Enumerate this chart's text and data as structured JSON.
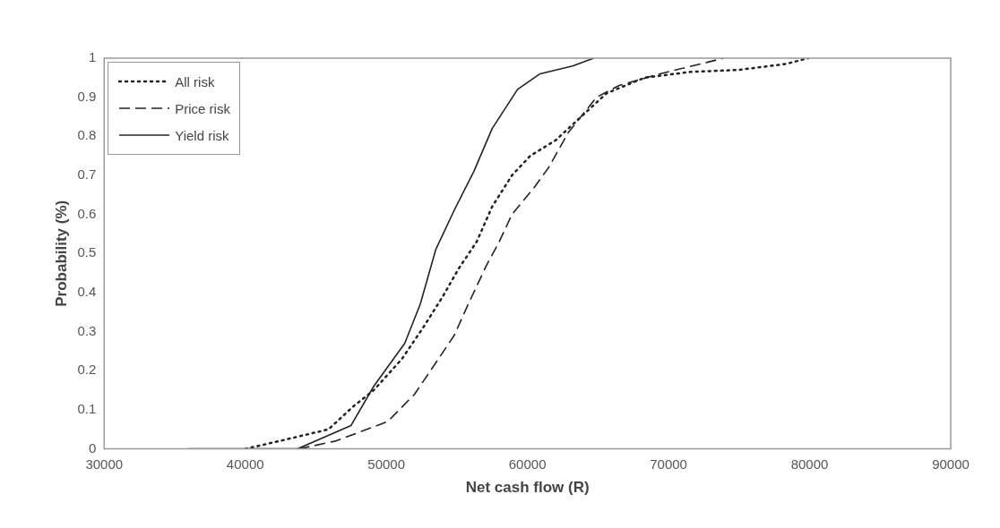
{
  "chart_data": {
    "type": "line",
    "xlabel": "Net cash flow (R)",
    "ylabel": "Probability (%)",
    "xlim": [
      30000,
      90000
    ],
    "xticks": [
      30000,
      40000,
      50000,
      60000,
      70000,
      80000,
      90000
    ],
    "ylim": [
      0,
      1
    ],
    "yticks": [
      0,
      0.1,
      0.2,
      0.3,
      0.4,
      0.5,
      0.6,
      0.7,
      0.8,
      0.9,
      1
    ],
    "grid": false,
    "legend": "top left",
    "marker": "none",
    "series": [
      {
        "name": "All risk",
        "color": "#222222",
        "line_style": "dotted",
        "x": [
          40000,
          42400,
          45900,
          47700,
          49100,
          51100,
          52600,
          54000,
          55100,
          56400,
          57500,
          58900,
          60200,
          62000,
          63800,
          65600,
          68300,
          71600,
          75000,
          78300,
          79900
        ],
        "values": [
          0,
          0.02,
          0.05,
          0.11,
          0.15,
          0.23,
          0.31,
          0.39,
          0.46,
          0.53,
          0.62,
          0.7,
          0.75,
          0.79,
          0.85,
          0.91,
          0.95,
          0.965,
          0.97,
          0.985,
          1
        ]
      },
      {
        "name": "Price risk",
        "color": "#222222",
        "line_style": "dashed",
        "x": [
          43800,
          46400,
          50100,
          52000,
          53500,
          54800,
          55800,
          57100,
          58000,
          58900,
          60500,
          61500,
          62900,
          64900,
          66500,
          69400,
          72800,
          73900
        ],
        "values": [
          0,
          0.02,
          0.07,
          0.14,
          0.22,
          0.29,
          0.37,
          0.47,
          0.53,
          0.6,
          0.67,
          0.72,
          0.81,
          0.9,
          0.93,
          0.96,
          0.99,
          1
        ]
      },
      {
        "name": "Yield risk",
        "color": "#222222",
        "line_style": "solid",
        "x": [
          36000,
          43700,
          47500,
          49100,
          51300,
          52400,
          53500,
          54800,
          56200,
          57500,
          59300,
          60900,
          63200,
          64700
        ],
        "values": [
          0,
          0,
          0.06,
          0.16,
          0.27,
          0.37,
          0.51,
          0.61,
          0.71,
          0.82,
          0.92,
          0.96,
          0.98,
          1
        ]
      }
    ]
  }
}
